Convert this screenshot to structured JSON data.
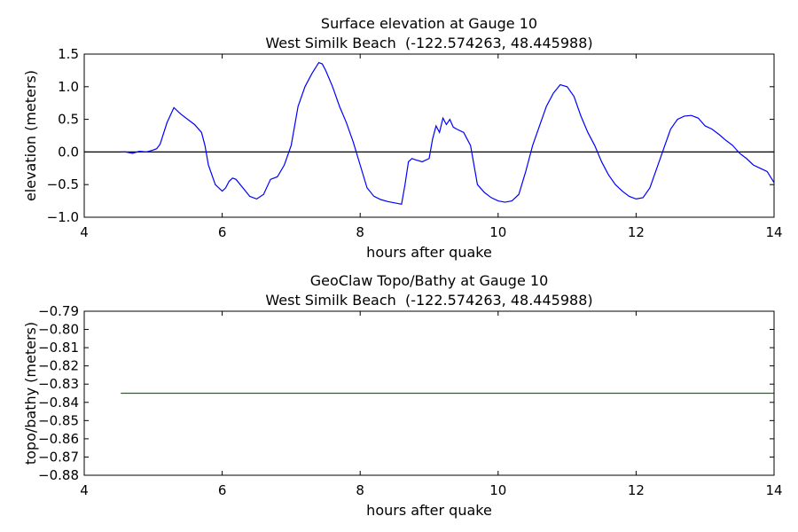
{
  "chart_data": [
    {
      "type": "line",
      "title": "Surface elevation at Gauge 10",
      "subtitle": "West Similk Beach  (-122.574263, 48.445988)",
      "xlabel": "hours after quake",
      "ylabel": "elevation (meters)",
      "xlim": [
        4,
        14
      ],
      "xticks": [
        4,
        6,
        8,
        10,
        12,
        14
      ],
      "ylim": [
        -1,
        1.5
      ],
      "yticks": [
        {
          "value": -1,
          "label": "−1.0"
        },
        {
          "value": -0.5,
          "label": "−0.5"
        },
        {
          "value": 0,
          "label": "0.0"
        },
        {
          "value": 0.5,
          "label": "0.5"
        },
        {
          "value": 1,
          "label": "1.0"
        },
        {
          "value": 1.5,
          "label": "1.5"
        }
      ],
      "hline": 0,
      "hline_color": "#000000",
      "x": [
        4.53,
        4.6,
        4.7,
        4.8,
        4.9,
        5.0,
        5.05,
        5.1,
        5.2,
        5.3,
        5.4,
        5.5,
        5.6,
        5.7,
        5.75,
        5.8,
        5.9,
        6.0,
        6.05,
        6.1,
        6.15,
        6.2,
        6.3,
        6.4,
        6.5,
        6.6,
        6.7,
        6.8,
        6.9,
        7.0,
        7.05,
        7.1,
        7.2,
        7.3,
        7.4,
        7.45,
        7.5,
        7.6,
        7.7,
        7.8,
        7.9,
        8.0,
        8.1,
        8.2,
        8.3,
        8.4,
        8.5,
        8.6,
        8.65,
        8.7,
        8.75,
        8.8,
        8.9,
        9.0,
        9.05,
        9.1,
        9.15,
        9.2,
        9.25,
        9.3,
        9.35,
        9.4,
        9.5,
        9.6,
        9.65,
        9.7,
        9.8,
        9.9,
        10.0,
        10.1,
        10.2,
        10.3,
        10.4,
        10.5,
        10.6,
        10.7,
        10.8,
        10.9,
        11.0,
        11.1,
        11.2,
        11.3,
        11.4,
        11.5,
        11.6,
        11.7,
        11.8,
        11.9,
        12.0,
        12.1,
        12.2,
        12.3,
        12.4,
        12.5,
        12.6,
        12.7,
        12.8,
        12.9,
        13.0,
        13.1,
        13.2,
        13.3,
        13.4,
        13.5,
        13.6,
        13.7,
        13.8,
        13.9,
        14.0
      ],
      "series": [
        {
          "color": "#0000ff",
          "values": [
            0.0,
            0.0,
            -0.02,
            0.01,
            0.0,
            0.03,
            0.05,
            0.12,
            0.45,
            0.68,
            0.58,
            0.5,
            0.42,
            0.3,
            0.1,
            -0.2,
            -0.5,
            -0.6,
            -0.55,
            -0.45,
            -0.4,
            -0.42,
            -0.55,
            -0.68,
            -0.72,
            -0.65,
            -0.42,
            -0.38,
            -0.2,
            0.1,
            0.4,
            0.7,
            1.0,
            1.2,
            1.37,
            1.35,
            1.25,
            1.0,
            0.7,
            0.45,
            0.15,
            -0.2,
            -0.55,
            -0.68,
            -0.73,
            -0.76,
            -0.78,
            -0.8,
            -0.5,
            -0.15,
            -0.1,
            -0.12,
            -0.15,
            -0.1,
            0.2,
            0.4,
            0.3,
            0.52,
            0.42,
            0.5,
            0.38,
            0.35,
            0.3,
            0.1,
            -0.2,
            -0.5,
            -0.62,
            -0.7,
            -0.75,
            -0.77,
            -0.75,
            -0.65,
            -0.3,
            0.1,
            0.4,
            0.7,
            0.9,
            1.03,
            1.0,
            0.85,
            0.55,
            0.3,
            0.1,
            -0.15,
            -0.35,
            -0.5,
            -0.6,
            -0.68,
            -0.72,
            -0.7,
            -0.55,
            -0.25,
            0.05,
            0.35,
            0.5,
            0.55,
            0.56,
            0.52,
            0.4,
            0.35,
            0.27,
            0.18,
            0.1,
            -0.02,
            -0.1,
            -0.2,
            -0.25,
            -0.3,
            -0.47
          ]
        }
      ]
    },
    {
      "type": "line",
      "title": "GeoClaw Topo/Bathy at Gauge 10",
      "subtitle": "West Similk Beach  (-122.574263, 48.445988)",
      "xlabel": "hours after quake",
      "ylabel": "topo/bathy (meters)",
      "xlim": [
        4,
        14
      ],
      "xticks": [
        4,
        6,
        8,
        10,
        12,
        14
      ],
      "ylim": [
        -0.88,
        -0.79
      ],
      "yticks": [
        {
          "value": -0.88,
          "label": "−0.88"
        },
        {
          "value": -0.87,
          "label": "−0.87"
        },
        {
          "value": -0.86,
          "label": "−0.86"
        },
        {
          "value": -0.85,
          "label": "−0.85"
        },
        {
          "value": -0.84,
          "label": "−0.84"
        },
        {
          "value": -0.83,
          "label": "−0.83"
        },
        {
          "value": -0.82,
          "label": "−0.82"
        },
        {
          "value": -0.81,
          "label": "−0.81"
        },
        {
          "value": -0.8,
          "label": "−0.80"
        },
        {
          "value": -0.79,
          "label": "−0.79"
        }
      ],
      "x": [
        4.53,
        14
      ],
      "series": [
        {
          "color": "#008000",
          "values": [
            -0.835,
            -0.835
          ]
        }
      ]
    }
  ]
}
